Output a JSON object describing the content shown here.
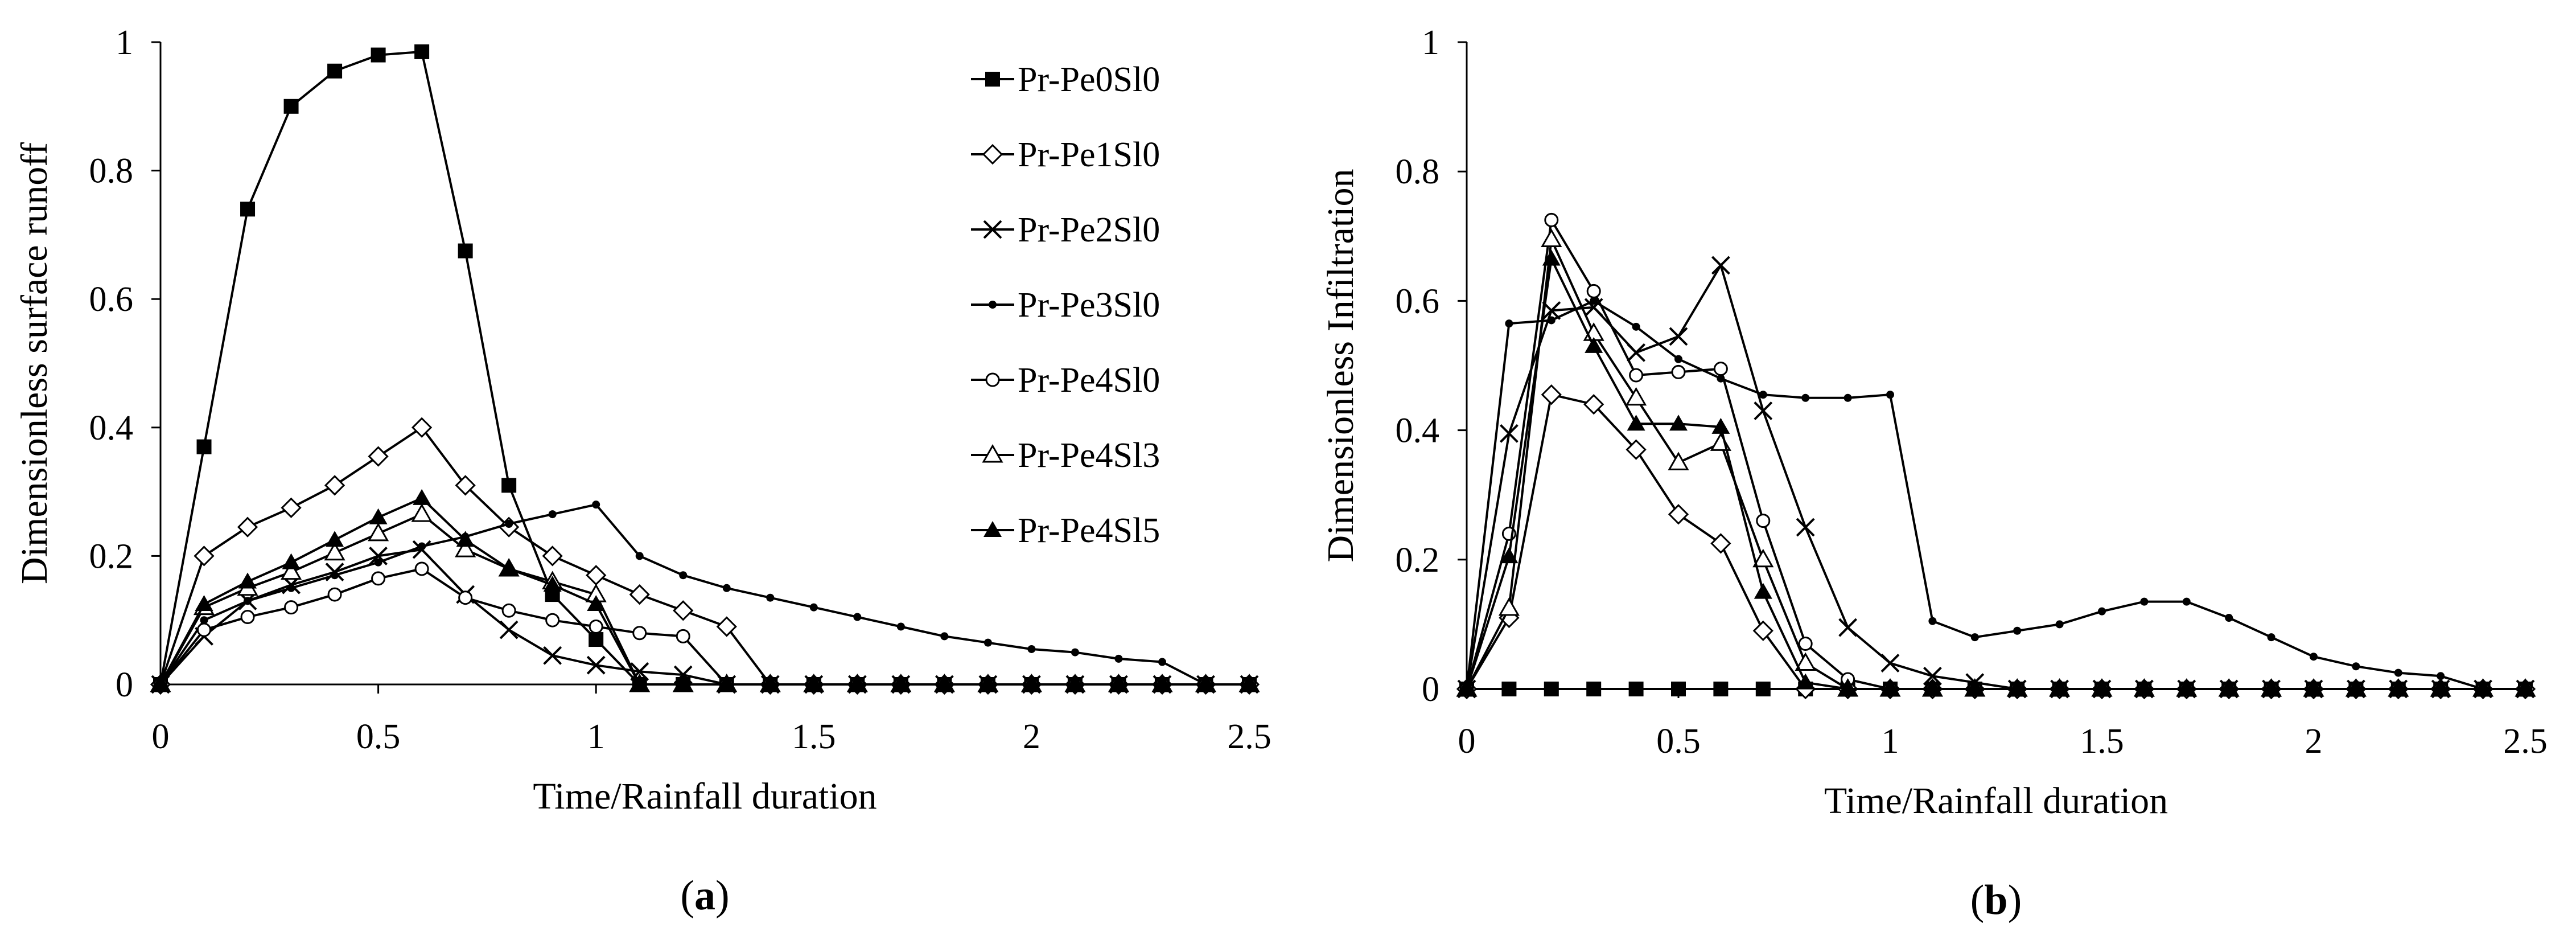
{
  "chart_data": [
    {
      "type": "line",
      "panel_label": "(a)",
      "panel_letter": "a",
      "xlabel": "Time/Rainfall duration",
      "ylabel": "Dimensionless surface runoff",
      "xlim": [
        0,
        2.5
      ],
      "ylim": [
        0,
        1
      ],
      "xticks": [
        0,
        0.5,
        1,
        1.5,
        2,
        2.5
      ],
      "yticks": [
        0,
        0.2,
        0.4,
        0.6,
        0.8,
        1
      ],
      "xtick_labels": [
        "0",
        "0.5",
        "1",
        "1.5",
        "2",
        "2.5"
      ],
      "ytick_labels": [
        "0",
        "0.2",
        "0.4",
        "0.6",
        "0.8",
        "1"
      ],
      "grid": false,
      "legend": {
        "placement": "right",
        "entries": [
          "Pr-Pe0Sl0",
          "Pr-Pe1Sl0",
          "Pr-Pe2Sl0",
          "Pr-Pe3Sl0",
          "Pr-Pe4Sl0",
          "Pr-Pe4Sl3",
          "Pr-Pe4Sl5"
        ]
      },
      "series": [
        {
          "name": "Pr-Pe0Sl0",
          "marker": "filled-square",
          "x": [
            0,
            0.1,
            0.2,
            0.3,
            0.4,
            0.5,
            0.6,
            0.7,
            0.8,
            0.9,
            1.0,
            1.1,
            1.2,
            1.3,
            1.4,
            1.5,
            1.6,
            1.7,
            1.8,
            1.9,
            2.0,
            2.1,
            2.2,
            2.3,
            2.4,
            2.5
          ],
          "y": [
            0,
            0.37,
            0.74,
            0.9,
            0.955,
            0.98,
            0.985,
            0.675,
            0.31,
            0.14,
            0.07,
            0,
            0,
            0,
            0,
            0,
            0,
            0,
            0,
            0,
            0,
            0,
            0,
            0,
            0,
            0
          ]
        },
        {
          "name": "Pr-Pe1Sl0",
          "marker": "open-diamond",
          "x": [
            0,
            0.1,
            0.2,
            0.3,
            0.4,
            0.5,
            0.6,
            0.7,
            0.8,
            0.9,
            1.0,
            1.1,
            1.2,
            1.3,
            1.4,
            1.5,
            1.6,
            1.7,
            1.8,
            1.9,
            2.0,
            2.1,
            2.2,
            2.3,
            2.4,
            2.5
          ],
          "y": [
            0,
            0.2,
            0.245,
            0.275,
            0.31,
            0.355,
            0.4,
            0.31,
            0.245,
            0.2,
            0.17,
            0.14,
            0.115,
            0.09,
            0,
            0,
            0,
            0,
            0,
            0,
            0,
            0,
            0,
            0,
            0,
            0
          ]
        },
        {
          "name": "Pr-Pe2Sl0",
          "marker": "cross",
          "x": [
            0,
            0.1,
            0.2,
            0.3,
            0.4,
            0.5,
            0.6,
            0.7,
            0.8,
            0.9,
            1.0,
            1.1,
            1.2,
            1.3,
            1.4,
            1.5,
            1.6,
            1.7,
            1.8,
            1.9,
            2.0,
            2.1,
            2.2,
            2.3,
            2.4,
            2.5
          ],
          "y": [
            0,
            0.075,
            0.13,
            0.155,
            0.175,
            0.2,
            0.21,
            0.14,
            0.085,
            0.045,
            0.03,
            0.02,
            0.015,
            0,
            0,
            0,
            0,
            0,
            0,
            0,
            0,
            0,
            0,
            0,
            0,
            0
          ]
        },
        {
          "name": "Pr-Pe3Sl0",
          "marker": "small-dot",
          "x": [
            0,
            0.1,
            0.2,
            0.3,
            0.4,
            0.5,
            0.6,
            0.7,
            0.8,
            0.9,
            1.0,
            1.1,
            1.2,
            1.3,
            1.4,
            1.5,
            1.6,
            1.7,
            1.8,
            1.9,
            2.0,
            2.1,
            2.2,
            2.3,
            2.4,
            2.5
          ],
          "y": [
            0,
            0.1,
            0.13,
            0.15,
            0.17,
            0.19,
            0.215,
            0.23,
            0.25,
            0.265,
            0.28,
            0.2,
            0.17,
            0.15,
            0.135,
            0.12,
            0.105,
            0.09,
            0.075,
            0.065,
            0.055,
            0.05,
            0.04,
            0.035,
            0,
            0
          ]
        },
        {
          "name": "Pr-Pe4Sl0",
          "marker": "open-circle",
          "x": [
            0,
            0.1,
            0.2,
            0.3,
            0.4,
            0.5,
            0.6,
            0.7,
            0.8,
            0.9,
            1.0,
            1.1,
            1.2,
            1.3,
            1.4,
            1.5,
            1.6,
            1.7,
            1.8,
            1.9,
            2.0,
            2.1,
            2.2,
            2.3,
            2.4,
            2.5
          ],
          "y": [
            0,
            0.085,
            0.105,
            0.12,
            0.14,
            0.165,
            0.18,
            0.135,
            0.115,
            0.1,
            0.09,
            0.08,
            0.075,
            0,
            0,
            0,
            0,
            0,
            0,
            0,
            0,
            0,
            0,
            0,
            0,
            0
          ]
        },
        {
          "name": "Pr-Pe4Sl3",
          "marker": "open-triangle",
          "x": [
            0,
            0.1,
            0.2,
            0.3,
            0.4,
            0.5,
            0.6,
            0.7,
            0.8,
            0.9,
            1.0,
            1.1,
            1.2,
            1.3,
            1.4,
            1.5,
            1.6,
            1.7,
            1.8,
            1.9,
            2.0,
            2.1,
            2.2,
            2.3,
            2.4,
            2.5
          ],
          "y": [
            0,
            0.12,
            0.15,
            0.175,
            0.205,
            0.235,
            0.265,
            0.21,
            0.18,
            0.16,
            0.14,
            0,
            0,
            0,
            0,
            0,
            0,
            0,
            0,
            0,
            0,
            0,
            0,
            0,
            0,
            0
          ]
        },
        {
          "name": "Pr-Pe4Sl5",
          "marker": "filled-triangle",
          "x": [
            0,
            0.1,
            0.2,
            0.3,
            0.4,
            0.5,
            0.6,
            0.7,
            0.8,
            0.9,
            1.0,
            1.1,
            1.2,
            1.3,
            1.4,
            1.5,
            1.6,
            1.7,
            1.8,
            1.9,
            2.0,
            2.1,
            2.2,
            2.3,
            2.4,
            2.5
          ],
          "y": [
            0,
            0.125,
            0.16,
            0.19,
            0.225,
            0.26,
            0.29,
            0.225,
            0.18,
            0.155,
            0.125,
            0,
            0,
            0,
            0,
            0,
            0,
            0,
            0,
            0,
            0,
            0,
            0,
            0,
            0,
            0
          ]
        }
      ]
    },
    {
      "type": "line",
      "panel_label": "(b)",
      "panel_letter": "b",
      "xlabel": "Time/Rainfall duration",
      "ylabel": "Dimensionless Infiltration",
      "xlim": [
        0,
        2.5
      ],
      "ylim": [
        0,
        1
      ],
      "xticks": [
        0,
        0.5,
        1,
        1.5,
        2,
        2.5
      ],
      "yticks": [
        0,
        0.2,
        0.4,
        0.6,
        0.8,
        1
      ],
      "xtick_labels": [
        "0",
        "0.5",
        "1",
        "1.5",
        "2",
        "2.5"
      ],
      "ytick_labels": [
        "0",
        "0.2",
        "0.4",
        "0.6",
        "0.8",
        "1"
      ],
      "grid": false,
      "series": [
        {
          "name": "Pr-Pe0Sl0",
          "marker": "filled-square",
          "x": [
            0,
            0.1,
            0.2,
            0.3,
            0.4,
            0.5,
            0.6,
            0.7,
            0.8,
            0.9,
            1.0,
            1.1,
            1.2,
            1.3,
            1.4,
            1.5,
            1.6,
            1.7,
            1.8,
            1.9,
            2.0,
            2.1,
            2.2,
            2.3,
            2.4,
            2.5
          ],
          "y": [
            0,
            0,
            0,
            0,
            0,
            0,
            0,
            0,
            0,
            0,
            0,
            0,
            0,
            0,
            0,
            0,
            0,
            0,
            0,
            0,
            0,
            0,
            0,
            0,
            0,
            0
          ]
        },
        {
          "name": "Pr-Pe1Sl0",
          "marker": "open-diamond",
          "x": [
            0,
            0.1,
            0.2,
            0.3,
            0.4,
            0.5,
            0.6,
            0.7,
            0.8,
            0.9,
            1.0,
            1.1,
            1.2,
            1.3,
            1.4,
            1.5,
            1.6,
            1.7,
            1.8,
            1.9,
            2.0,
            2.1,
            2.2,
            2.3,
            2.4,
            2.5
          ],
          "y": [
            0,
            0.11,
            0.455,
            0.44,
            0.37,
            0.27,
            0.225,
            0.09,
            0,
            0,
            0,
            0,
            0,
            0,
            0,
            0,
            0,
            0,
            0,
            0,
            0,
            0,
            0,
            0,
            0,
            0
          ]
        },
        {
          "name": "Pr-Pe2Sl0",
          "marker": "cross",
          "x": [
            0,
            0.1,
            0.2,
            0.3,
            0.4,
            0.5,
            0.6,
            0.7,
            0.8,
            0.9,
            1.0,
            1.1,
            1.2,
            1.3,
            1.4,
            1.5,
            1.6,
            1.7,
            1.8,
            1.9,
            2.0,
            2.1,
            2.2,
            2.3,
            2.4,
            2.5
          ],
          "y": [
            0,
            0.395,
            0.585,
            0.59,
            0.52,
            0.545,
            0.655,
            0.43,
            0.25,
            0.095,
            0.04,
            0.02,
            0.01,
            0,
            0,
            0,
            0,
            0,
            0,
            0,
            0,
            0,
            0,
            0,
            0,
            0
          ]
        },
        {
          "name": "Pr-Pe3Sl0",
          "marker": "small-dot",
          "x": [
            0,
            0.1,
            0.2,
            0.3,
            0.4,
            0.5,
            0.6,
            0.7,
            0.8,
            0.9,
            1.0,
            1.1,
            1.2,
            1.3,
            1.4,
            1.5,
            1.6,
            1.7,
            1.8,
            1.9,
            2.0,
            2.1,
            2.2,
            2.3,
            2.4,
            2.5
          ],
          "y": [
            0,
            0.565,
            0.57,
            0.6,
            0.56,
            0.51,
            0.48,
            0.455,
            0.45,
            0.45,
            0.455,
            0.105,
            0.08,
            0.09,
            0.1,
            0.12,
            0.135,
            0.135,
            0.11,
            0.08,
            0.05,
            0.035,
            0.025,
            0.02,
            0,
            0
          ]
        },
        {
          "name": "Pr-Pe4Sl0",
          "marker": "open-circle",
          "x": [
            0,
            0.1,
            0.2,
            0.3,
            0.4,
            0.5,
            0.6,
            0.7,
            0.8,
            0.9,
            1.0,
            1.1,
            1.2,
            1.3,
            1.4,
            1.5,
            1.6,
            1.7,
            1.8,
            1.9,
            2.0,
            2.1,
            2.2,
            2.3,
            2.4,
            2.5
          ],
          "y": [
            0,
            0.24,
            0.725,
            0.615,
            0.485,
            0.49,
            0.495,
            0.26,
            0.07,
            0.015,
            0,
            0,
            0,
            0,
            0,
            0,
            0,
            0,
            0,
            0,
            0,
            0,
            0,
            0,
            0,
            0
          ]
        },
        {
          "name": "Pr-Pe4Sl3",
          "marker": "open-triangle",
          "x": [
            0,
            0.1,
            0.2,
            0.3,
            0.4,
            0.5,
            0.6,
            0.7,
            0.8,
            0.9,
            1.0,
            1.1,
            1.2,
            1.3,
            1.4,
            1.5,
            1.6,
            1.7,
            1.8,
            1.9,
            2.0,
            2.1,
            2.2,
            2.3,
            2.4,
            2.5
          ],
          "y": [
            0,
            0.125,
            0.695,
            0.55,
            0.45,
            0.35,
            0.38,
            0.2,
            0.04,
            0,
            0,
            0,
            0,
            0,
            0,
            0,
            0,
            0,
            0,
            0,
            0,
            0,
            0,
            0,
            0,
            0
          ]
        },
        {
          "name": "Pr-Pe4Sl5",
          "marker": "filled-triangle",
          "x": [
            0,
            0.1,
            0.2,
            0.3,
            0.4,
            0.5,
            0.6,
            0.7,
            0.8,
            0.9,
            1.0,
            1.1,
            1.2,
            1.3,
            1.4,
            1.5,
            1.6,
            1.7,
            1.8,
            1.9,
            2.0,
            2.1,
            2.2,
            2.3,
            2.4,
            2.5
          ],
          "y": [
            0,
            0.205,
            0.665,
            0.53,
            0.41,
            0.41,
            0.405,
            0.15,
            0.01,
            0,
            0,
            0,
            0,
            0,
            0,
            0,
            0,
            0,
            0,
            0,
            0,
            0,
            0,
            0,
            0,
            0
          ]
        }
      ]
    }
  ]
}
